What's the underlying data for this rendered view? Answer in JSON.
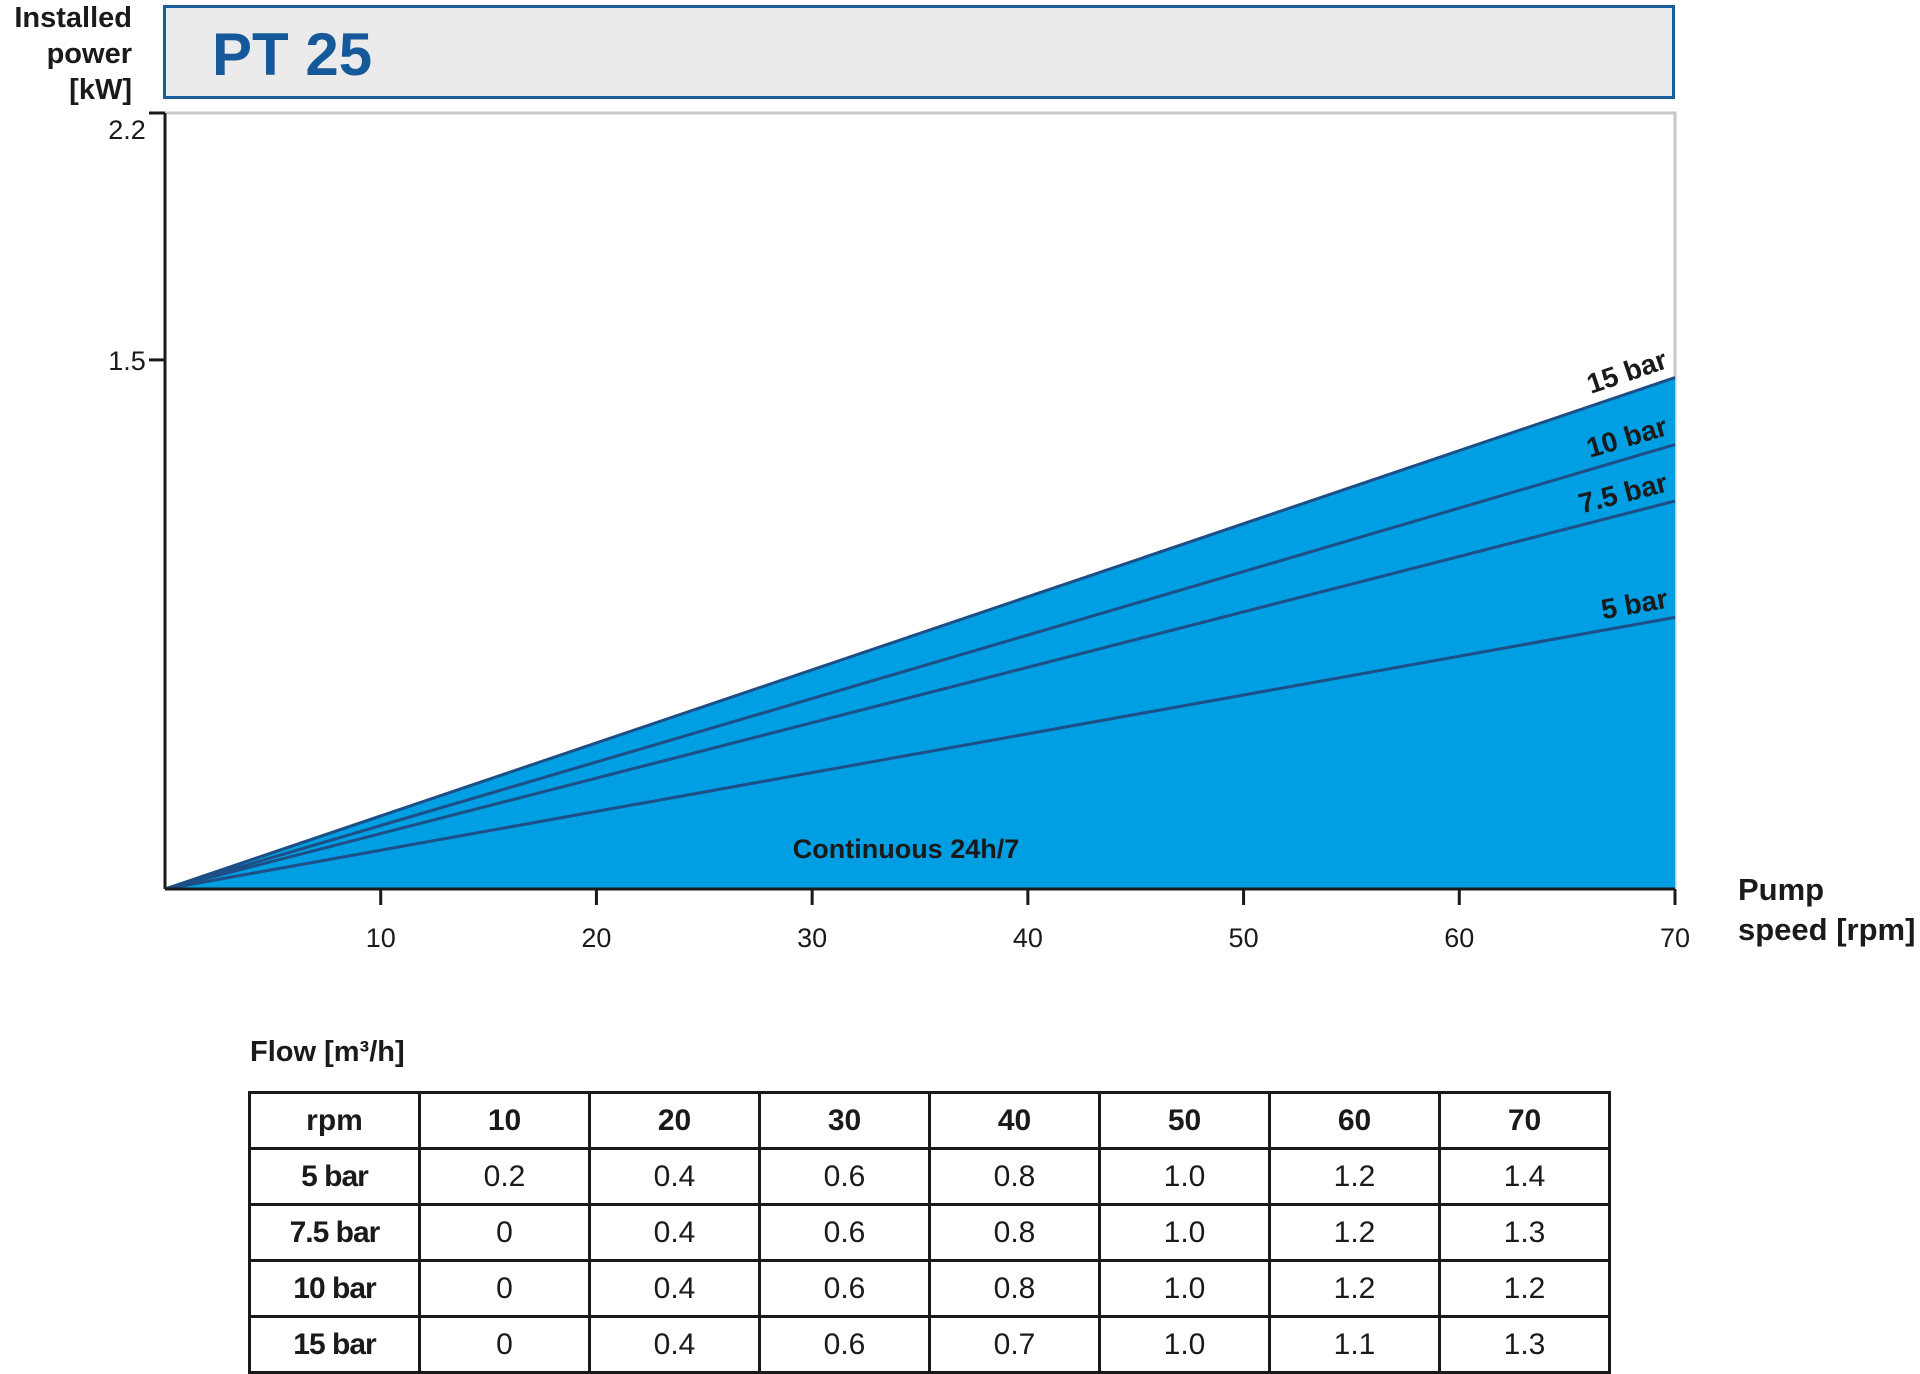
{
  "header": {
    "title": "PT 25"
  },
  "axes": {
    "ylabel_lines": [
      "Installed",
      "power",
      "[kW]"
    ],
    "xlabel_lines": [
      "Pump",
      "speed [rpm]"
    ]
  },
  "chart_data": {
    "type": "area",
    "title": "PT 25",
    "xlabel": "Pump speed [rpm]",
    "ylabel": "Installed power [kW]",
    "xlim": [
      0,
      70
    ],
    "ylim": [
      0,
      2.2
    ],
    "x_ticks": [
      "10",
      "20",
      "30",
      "40",
      "50",
      "60",
      "70"
    ],
    "y_ticks": [
      "1.5",
      "2.2"
    ],
    "y_tick_values": [
      1.5,
      2.2
    ],
    "x_tick_values": [
      10,
      20,
      30,
      40,
      50,
      60,
      70
    ],
    "series": [
      {
        "name": "15 bar",
        "x": [
          0,
          70
        ],
        "y": [
          0,
          1.45
        ]
      },
      {
        "name": "10 bar",
        "x": [
          0,
          70
        ],
        "y": [
          0,
          1.26
        ]
      },
      {
        "name": "7.5 bar",
        "x": [
          0,
          70
        ],
        "y": [
          0,
          1.1
        ]
      },
      {
        "name": "5 bar",
        "x": [
          0,
          70
        ],
        "y": [
          0,
          0.77
        ]
      }
    ],
    "annotation": "Continuous 24h/7",
    "fill_color": "#009ee2",
    "line_color": "#1d4f86",
    "grid": false
  },
  "flow_table": {
    "title": "Flow [m³/h]",
    "header": [
      "rpm",
      "10",
      "20",
      "30",
      "40",
      "50",
      "60",
      "70"
    ],
    "rows": [
      [
        "5 bar",
        "0.2",
        "0.4",
        "0.6",
        "0.8",
        "1.0",
        "1.2",
        "1.4"
      ],
      [
        "7.5 bar",
        "0",
        "0.4",
        "0.6",
        "0.8",
        "1.0",
        "1.2",
        "1.3"
      ],
      [
        "10 bar",
        "0",
        "0.4",
        "0.6",
        "0.8",
        "1.0",
        "1.2",
        "1.2"
      ],
      [
        "15 bar",
        "0",
        "0.4",
        "0.6",
        "0.7",
        "1.0",
        "1.1",
        "1.3"
      ]
    ]
  }
}
